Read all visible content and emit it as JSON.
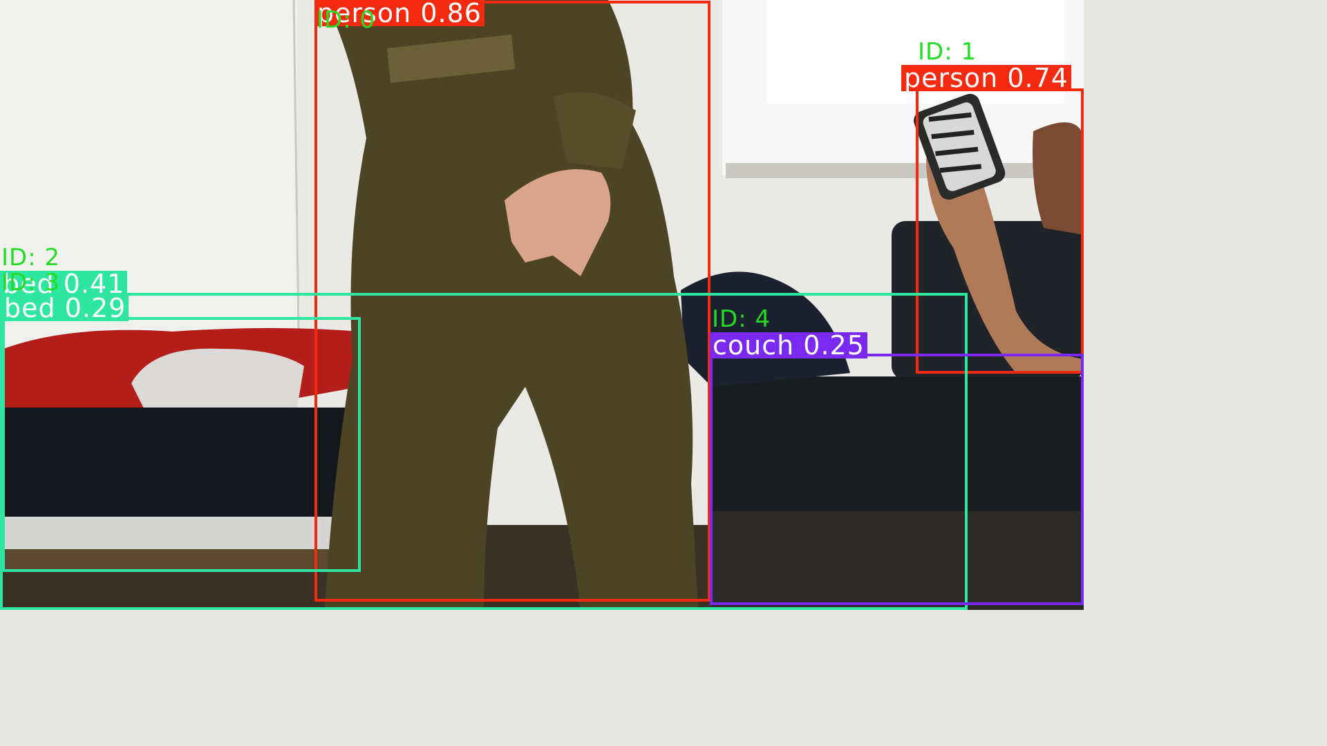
{
  "detections": [
    {
      "label": "person 0.86",
      "track_id": "ID: 0",
      "class": "person",
      "confidence": 0.86
    },
    {
      "label": "person 0.74",
      "track_id": "ID: 1",
      "class": "person",
      "confidence": 0.74
    },
    {
      "label": "bed 0.41",
      "track_id": "ID: 2",
      "class": "bed",
      "confidence": 0.41
    },
    {
      "label": "bed 0.29",
      "track_id": "ID: 3",
      "class": "bed",
      "confidence": 0.29
    },
    {
      "label": "couch 0.25",
      "track_id": "ID: 4",
      "class": "couch",
      "confidence": 0.25
    }
  ],
  "colors": {
    "person": "#f42a10",
    "bed": "#2ee6a0",
    "couch": "#7a2af0",
    "id_text": "#22dd22"
  }
}
